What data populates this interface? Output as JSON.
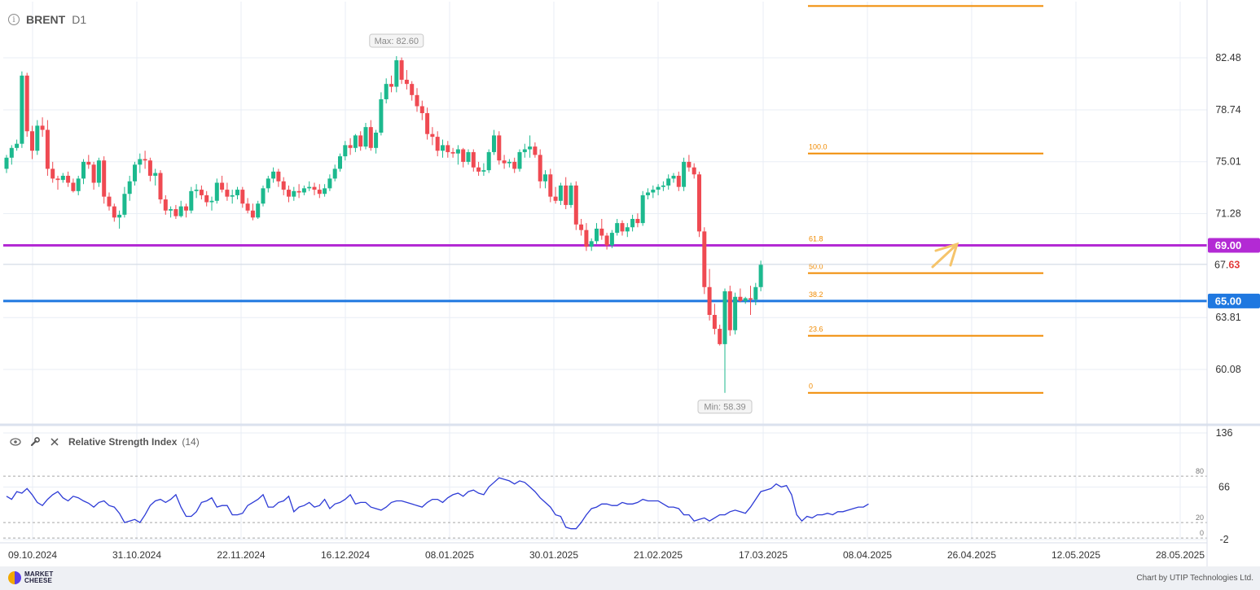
{
  "header": {
    "symbol": "BRENT",
    "timeframe": "D1",
    "info_icon": "info-icon"
  },
  "rsi_panel": {
    "name": "Relative Strength Index",
    "param": "(14)",
    "icons": [
      "eye-icon",
      "wrench-icon",
      "close-icon"
    ]
  },
  "footer": {
    "logo_line1": "MARKET",
    "logo_line2": "CHEESE",
    "credit": "Chart by UTIP Technologies Ltd."
  },
  "chart_data": [
    {
      "type": "candlestick",
      "price_axis_ticks": [
        82.48,
        78.74,
        75.01,
        71.28,
        63.81,
        60.08
      ],
      "price_axis_tick_labels": [
        "82.48",
        "78.74",
        "75.01",
        "71.28",
        "63.81",
        "60.08"
      ],
      "x_tick_labels": [
        "09.10.2024",
        "31.10.2024",
        "22.11.2024",
        "16.12.2024",
        "08.01.2025",
        "30.01.2025",
        "21.02.2025",
        "17.03.2025",
        "08.04.2025",
        "26.04.2025",
        "12.05.2025",
        "28.05.2025"
      ],
      "current_price": {
        "main": "67.",
        "tail": "63",
        "value": 67.63
      },
      "max_label": "Max: 82.60",
      "min_label": "Min: 58.39",
      "horizontal_levels": [
        {
          "value": 69.0,
          "label": "69.00",
          "color": "#b32ad4"
        },
        {
          "value": 65.0,
          "label": "65.00",
          "color": "#1f78e0"
        }
      ],
      "fibonacci": {
        "color": "#f08a00",
        "levels": [
          {
            "label": "100.0",
            "value": 75.6
          },
          {
            "label": "61.8",
            "value": 69.0
          },
          {
            "label": "50.0",
            "value": 67.0
          },
          {
            "label": "38.2",
            "value": 65.0
          },
          {
            "label": "23.6",
            "value": 62.5
          },
          {
            "label": "0",
            "value": 58.4
          }
        ]
      },
      "extra_fib_line_value": 86.2,
      "colors": {
        "up": "#1cb98e",
        "down": "#ef4a52",
        "grid": "#e9eef5"
      },
      "candles": [
        [
          74.5,
          75.5,
          74.2,
          75.3
        ],
        [
          75.3,
          76.2,
          74.8,
          76.0
        ],
        [
          76.0,
          76.6,
          75.8,
          76.3
        ],
        [
          76.3,
          81.5,
          76.0,
          81.2
        ],
        [
          81.2,
          81.4,
          76.8,
          77.2
        ],
        [
          77.2,
          77.6,
          75.2,
          75.8
        ],
        [
          75.8,
          78.0,
          75.5,
          77.6
        ],
        [
          77.6,
          78.2,
          76.8,
          77.3
        ],
        [
          77.3,
          78.0,
          74.0,
          74.5
        ],
        [
          74.5,
          75.0,
          73.5,
          73.8
        ],
        [
          73.8,
          74.0,
          73.0,
          73.7
        ],
        [
          73.7,
          74.2,
          73.5,
          74.0
        ],
        [
          74.0,
          74.3,
          73.2,
          73.5
        ],
        [
          73.5,
          73.8,
          72.8,
          72.9
        ],
        [
          72.9,
          74.0,
          72.6,
          73.8
        ],
        [
          73.8,
          75.2,
          73.4,
          75.0
        ],
        [
          75.0,
          75.5,
          74.5,
          74.8
        ],
        [
          74.8,
          75.0,
          73.0,
          73.5
        ],
        [
          73.5,
          75.3,
          73.2,
          75.1
        ],
        [
          75.1,
          75.4,
          72.0,
          72.5
        ],
        [
          72.5,
          72.8,
          71.5,
          71.8
        ],
        [
          71.8,
          72.0,
          70.7,
          71.0
        ],
        [
          71.0,
          71.5,
          70.2,
          71.2
        ],
        [
          71.2,
          73.2,
          71.0,
          72.7
        ],
        [
          72.7,
          74.0,
          72.2,
          73.6
        ],
        [
          73.6,
          75.0,
          73.3,
          74.8
        ],
        [
          74.8,
          75.6,
          74.2,
          75.2
        ],
        [
          75.2,
          75.8,
          74.5,
          75.1
        ],
        [
          75.1,
          75.3,
          73.6,
          74.0
        ],
        [
          74.0,
          74.5,
          73.3,
          74.2
        ],
        [
          74.2,
          74.4,
          72.0,
          72.3
        ],
        [
          72.3,
          72.6,
          71.2,
          71.5
        ],
        [
          71.5,
          71.8,
          71.0,
          71.6
        ],
        [
          71.6,
          71.9,
          70.9,
          71.1
        ],
        [
          71.1,
          72.2,
          71.0,
          71.8
        ],
        [
          71.8,
          72.0,
          71.0,
          71.5
        ],
        [
          71.5,
          73.2,
          71.3,
          72.9
        ],
        [
          72.9,
          73.4,
          72.4,
          73.0
        ],
        [
          73.0,
          73.3,
          72.3,
          72.6
        ],
        [
          72.6,
          72.9,
          71.8,
          72.1
        ],
        [
          72.1,
          72.5,
          71.5,
          72.2
        ],
        [
          72.2,
          73.8,
          72.0,
          73.5
        ],
        [
          73.5,
          74.0,
          72.8,
          73.0
        ],
        [
          73.0,
          73.5,
          72.2,
          72.5
        ],
        [
          72.5,
          73.0,
          72.0,
          72.6
        ],
        [
          72.6,
          73.2,
          72.3,
          73.0
        ],
        [
          73.0,
          73.2,
          71.7,
          72.0
        ],
        [
          72.0,
          72.4,
          71.3,
          71.5
        ],
        [
          71.5,
          72.0,
          70.8,
          71.0
        ],
        [
          71.0,
          72.2,
          70.9,
          72.0
        ],
        [
          72.0,
          73.3,
          71.8,
          73.1
        ],
        [
          73.1,
          74.0,
          72.8,
          73.8
        ],
        [
          73.8,
          74.6,
          73.5,
          74.3
        ],
        [
          74.3,
          74.5,
          73.2,
          73.6
        ],
        [
          73.6,
          73.9,
          72.6,
          73.0
        ],
        [
          73.0,
          73.3,
          72.1,
          72.5
        ],
        [
          72.5,
          73.2,
          72.2,
          72.9
        ],
        [
          72.9,
          73.4,
          72.4,
          72.8
        ],
        [
          72.8,
          73.3,
          72.6,
          73.1
        ],
        [
          73.1,
          73.6,
          72.9,
          73.2
        ],
        [
          73.2,
          73.5,
          72.6,
          73.0
        ],
        [
          73.0,
          73.4,
          72.4,
          72.7
        ],
        [
          72.7,
          73.4,
          72.5,
          73.1
        ],
        [
          73.1,
          74.1,
          72.9,
          73.8
        ],
        [
          73.8,
          74.8,
          73.6,
          74.5
        ],
        [
          74.5,
          75.6,
          74.3,
          75.4
        ],
        [
          75.4,
          76.5,
          75.1,
          76.2
        ],
        [
          76.2,
          76.7,
          75.5,
          76.0
        ],
        [
          76.0,
          77.0,
          75.7,
          76.9
        ],
        [
          76.9,
          77.2,
          75.8,
          76.1
        ],
        [
          76.1,
          77.8,
          75.9,
          77.5
        ],
        [
          77.5,
          78.0,
          75.8,
          76.0
        ],
        [
          76.0,
          77.3,
          75.6,
          77.1
        ],
        [
          77.1,
          80.0,
          76.9,
          79.5
        ],
        [
          79.5,
          81.0,
          79.2,
          80.6
        ],
        [
          80.6,
          81.2,
          80.0,
          80.4
        ],
        [
          80.4,
          82.6,
          80.0,
          82.3
        ],
        [
          82.3,
          82.5,
          80.6,
          80.9
        ],
        [
          80.9,
          81.6,
          80.2,
          80.6
        ],
        [
          80.6,
          80.8,
          79.4,
          79.8
        ],
        [
          79.8,
          80.3,
          78.6,
          79.0
        ],
        [
          79.0,
          79.4,
          78.0,
          78.5
        ],
        [
          78.5,
          78.9,
          76.6,
          77.0
        ],
        [
          77.0,
          77.5,
          76.2,
          76.8
        ],
        [
          76.8,
          77.2,
          75.4,
          75.8
        ],
        [
          75.8,
          76.6,
          75.3,
          76.2
        ],
        [
          76.2,
          76.5,
          75.3,
          75.7
        ],
        [
          75.7,
          76.0,
          75.3,
          75.6
        ],
        [
          75.6,
          76.2,
          74.8,
          75.9
        ],
        [
          75.9,
          76.0,
          74.6,
          75.0
        ],
        [
          75.0,
          75.9,
          74.8,
          75.7
        ],
        [
          75.7,
          75.9,
          74.3,
          74.6
        ],
        [
          74.6,
          75.0,
          74.0,
          74.3
        ],
        [
          74.3,
          74.9,
          74.0,
          74.4
        ],
        [
          74.4,
          75.9,
          74.2,
          75.7
        ],
        [
          75.7,
          77.3,
          75.5,
          76.9
        ],
        [
          76.9,
          77.2,
          74.8,
          75.1
        ],
        [
          75.1,
          75.5,
          74.5,
          74.9
        ],
        [
          74.9,
          75.2,
          74.6,
          75.0
        ],
        [
          75.0,
          75.3,
          74.2,
          74.5
        ],
        [
          74.5,
          75.9,
          74.3,
          75.7
        ],
        [
          75.7,
          76.3,
          75.3,
          75.9
        ],
        [
          75.9,
          76.9,
          75.3,
          76.1
        ],
        [
          76.1,
          76.4,
          75.3,
          75.5
        ],
        [
          75.5,
          75.9,
          73.1,
          73.6
        ],
        [
          73.6,
          74.4,
          73.1,
          74.1
        ],
        [
          74.1,
          74.5,
          72.1,
          72.5
        ],
        [
          72.5,
          73.2,
          72.0,
          72.2
        ],
        [
          72.2,
          73.5,
          71.9,
          73.3
        ],
        [
          73.3,
          73.9,
          71.6,
          71.9
        ],
        [
          71.9,
          73.5,
          71.7,
          73.3
        ],
        [
          73.3,
          73.6,
          70.1,
          70.5
        ],
        [
          70.5,
          70.9,
          69.7,
          70.1
        ],
        [
          70.1,
          70.6,
          68.6,
          68.9
        ],
        [
          68.9,
          69.5,
          68.6,
          69.3
        ],
        [
          69.3,
          70.6,
          69.1,
          70.2
        ],
        [
          70.2,
          70.9,
          69.4,
          69.7
        ],
        [
          69.7,
          69.9,
          68.7,
          69.0
        ],
        [
          69.0,
          70.1,
          68.8,
          69.9
        ],
        [
          69.9,
          70.9,
          69.7,
          70.6
        ],
        [
          70.6,
          70.8,
          69.7,
          70.0
        ],
        [
          70.0,
          70.6,
          69.6,
          70.3
        ],
        [
          70.3,
          71.2,
          70.0,
          70.9
        ],
        [
          70.9,
          71.3,
          70.3,
          70.6
        ],
        [
          70.6,
          72.9,
          70.4,
          72.6
        ],
        [
          72.6,
          73.1,
          72.3,
          72.8
        ],
        [
          72.8,
          73.3,
          72.4,
          73.0
        ],
        [
          73.0,
          73.4,
          72.6,
          73.2
        ],
        [
          73.2,
          73.6,
          72.9,
          73.3
        ],
        [
          73.3,
          74.1,
          73.0,
          73.8
        ],
        [
          73.8,
          74.2,
          73.5,
          74.0
        ],
        [
          74.0,
          74.3,
          72.9,
          73.2
        ],
        [
          73.2,
          75.3,
          72.9,
          75.0
        ],
        [
          75.0,
          75.5,
          74.3,
          74.6
        ],
        [
          74.6,
          74.9,
          73.8,
          74.1
        ],
        [
          74.1,
          74.3,
          69.6,
          70.0
        ],
        [
          70.0,
          70.3,
          65.5,
          66.0
        ],
        [
          66.0,
          67.3,
          63.6,
          64.0
        ],
        [
          64.0,
          64.8,
          62.6,
          63.0
        ],
        [
          63.0,
          63.3,
          61.8,
          61.9
        ],
        [
          61.9,
          65.9,
          58.4,
          65.7
        ],
        [
          65.7,
          66.1,
          62.5,
          62.9
        ],
        [
          62.9,
          65.6,
          62.6,
          65.3
        ],
        [
          65.3,
          65.9,
          64.9,
          65.0
        ],
        [
          65.0,
          65.3,
          64.8,
          65.2
        ],
        [
          65.2,
          66.1,
          64.0,
          65.1
        ],
        [
          65.1,
          66.3,
          64.7,
          66.0
        ],
        [
          66.0,
          67.9,
          65.7,
          67.6
        ]
      ]
    },
    {
      "type": "line",
      "name": "Relative Strength Index",
      "y_axis_ticks": [
        136,
        66,
        -2
      ],
      "levels": [
        80,
        20,
        0
      ],
      "line_color": "#2d3bd6",
      "values": [
        54,
        50,
        60,
        58,
        64,
        56,
        46,
        42,
        50,
        56,
        60,
        52,
        48,
        54,
        52,
        48,
        45,
        40,
        46,
        48,
        42,
        40,
        32,
        20,
        22,
        24,
        20,
        30,
        42,
        48,
        50,
        46,
        50,
        56,
        40,
        28,
        28,
        34,
        46,
        48,
        52,
        40,
        42,
        42,
        30,
        30,
        32,
        42,
        46,
        50,
        56,
        40,
        40,
        46,
        48,
        54,
        34,
        40,
        42,
        46,
        40,
        42,
        50,
        38,
        44,
        46,
        50,
        56,
        44,
        46,
        46,
        40,
        38,
        36,
        40,
        46,
        48,
        48,
        46,
        44,
        42,
        40,
        46,
        50,
        50,
        46,
        52,
        56,
        58,
        54,
        60,
        62,
        58,
        56,
        66,
        72,
        78,
        76,
        74,
        70,
        74,
        72,
        66,
        60,
        52,
        46,
        40,
        30,
        28,
        14,
        12,
        12,
        20,
        30,
        38,
        40,
        44,
        44,
        42,
        42,
        46,
        44,
        44,
        46,
        50,
        48,
        48,
        48,
        44,
        40,
        40,
        38,
        30,
        30,
        22,
        24,
        26,
        22,
        26,
        30,
        30,
        34,
        36,
        34,
        32,
        40,
        50,
        60,
        62,
        64,
        70,
        66,
        68,
        56,
        30,
        22,
        28,
        26,
        30,
        30,
        32,
        30,
        34,
        34,
        36,
        38,
        40,
        40,
        44
      ]
    }
  ]
}
